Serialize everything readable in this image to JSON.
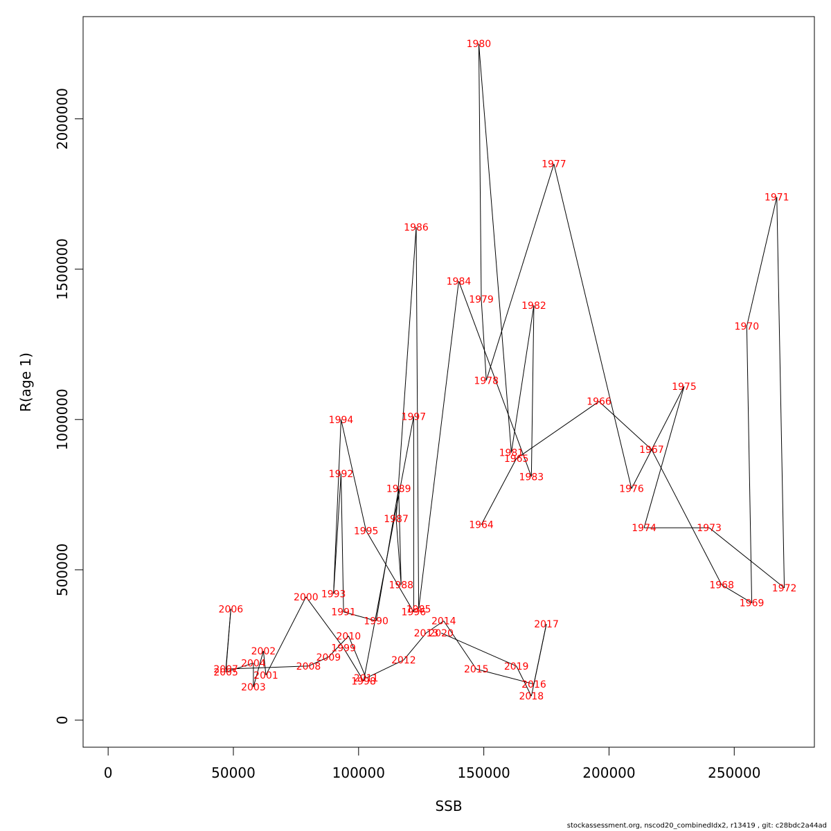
{
  "chart_data": {
    "type": "line",
    "xlabel": "SSB",
    "ylabel": "R(age 1)",
    "xlim": [
      -10000,
      282000
    ],
    "ylim": [
      -90000,
      2340000
    ],
    "x_ticks": [
      0,
      50000,
      100000,
      150000,
      200000,
      250000
    ],
    "x_tick_labels": [
      "0",
      "50000",
      "100000",
      "150000",
      "200000",
      "250000"
    ],
    "y_ticks": [
      0,
      500000,
      1000000,
      1500000,
      2000000
    ],
    "y_tick_labels": [
      "0",
      "500000",
      "1000000",
      "1500000",
      "2000000"
    ],
    "line_color": "#000000",
    "label_color": "#ff0000",
    "grid": false,
    "points": [
      {
        "year": "1964",
        "x": 149000,
        "y": 650000
      },
      {
        "year": "1965",
        "x": 163000,
        "y": 870000
      },
      {
        "year": "1966",
        "x": 196000,
        "y": 1060000
      },
      {
        "year": "1967",
        "x": 217000,
        "y": 900000
      },
      {
        "year": "1968",
        "x": 245000,
        "y": 450000
      },
      {
        "year": "1969",
        "x": 257000,
        "y": 390000
      },
      {
        "year": "1970",
        "x": 255000,
        "y": 1310000
      },
      {
        "year": "1971",
        "x": 267000,
        "y": 1740000
      },
      {
        "year": "1972",
        "x": 270000,
        "y": 440000
      },
      {
        "year": "1973",
        "x": 240000,
        "y": 640000
      },
      {
        "year": "1974",
        "x": 214000,
        "y": 640000
      },
      {
        "year": "1975",
        "x": 230000,
        "y": 1110000
      },
      {
        "year": "1976",
        "x": 209000,
        "y": 770000
      },
      {
        "year": "1977",
        "x": 178000,
        "y": 1850000
      },
      {
        "year": "1978",
        "x": 151000,
        "y": 1130000
      },
      {
        "year": "1979",
        "x": 149000,
        "y": 1400000
      },
      {
        "year": "1980",
        "x": 148000,
        "y": 2250000
      },
      {
        "year": "1981",
        "x": 161000,
        "y": 890000
      },
      {
        "year": "1982",
        "x": 170000,
        "y": 1380000
      },
      {
        "year": "1983",
        "x": 169000,
        "y": 810000
      },
      {
        "year": "1984",
        "x": 140000,
        "y": 1460000
      },
      {
        "year": "1985",
        "x": 124000,
        "y": 370000
      },
      {
        "year": "1986",
        "x": 123000,
        "y": 1640000
      },
      {
        "year": "1987",
        "x": 115000,
        "y": 670000
      },
      {
        "year": "1988",
        "x": 117000,
        "y": 450000
      },
      {
        "year": "1989",
        "x": 116000,
        "y": 770000
      },
      {
        "year": "1990",
        "x": 107000,
        "y": 330000
      },
      {
        "year": "1991",
        "x": 94000,
        "y": 360000
      },
      {
        "year": "1992",
        "x": 93000,
        "y": 820000
      },
      {
        "year": "1993",
        "x": 90000,
        "y": 420000
      },
      {
        "year": "1994",
        "x": 93000,
        "y": 1000000
      },
      {
        "year": "1995",
        "x": 103000,
        "y": 630000
      },
      {
        "year": "1996",
        "x": 122000,
        "y": 360000
      },
      {
        "year": "1997",
        "x": 122000,
        "y": 1010000
      },
      {
        "year": "1998",
        "x": 102000,
        "y": 130000
      },
      {
        "year": "1999",
        "x": 94000,
        "y": 240000
      },
      {
        "year": "2000",
        "x": 79000,
        "y": 410000
      },
      {
        "year": "2001",
        "x": 63000,
        "y": 150000
      },
      {
        "year": "2002",
        "x": 62000,
        "y": 230000
      },
      {
        "year": "2003",
        "x": 58000,
        "y": 110000
      },
      {
        "year": "2004",
        "x": 58000,
        "y": 190000
      },
      {
        "year": "2005",
        "x": 47000,
        "y": 160000
      },
      {
        "year": "2006",
        "x": 49000,
        "y": 370000
      },
      {
        "year": "2007",
        "x": 47000,
        "y": 170000
      },
      {
        "year": "2008",
        "x": 80000,
        "y": 180000
      },
      {
        "year": "2009",
        "x": 88000,
        "y": 210000
      },
      {
        "year": "2010",
        "x": 96000,
        "y": 280000
      },
      {
        "year": "2011",
        "x": 103000,
        "y": 140000
      },
      {
        "year": "2012",
        "x": 118000,
        "y": 200000
      },
      {
        "year": "2013",
        "x": 127000,
        "y": 290000
      },
      {
        "year": "2014",
        "x": 134000,
        "y": 330000
      },
      {
        "year": "2015",
        "x": 147000,
        "y": 170000
      },
      {
        "year": "2016",
        "x": 170000,
        "y": 120000
      },
      {
        "year": "2017",
        "x": 175000,
        "y": 320000
      },
      {
        "year": "2018",
        "x": 169000,
        "y": 80000
      },
      {
        "year": "2019",
        "x": 163000,
        "y": 180000
      },
      {
        "year": "2020",
        "x": 133000,
        "y": 290000
      }
    ]
  },
  "footer": {
    "text": "stockassessment.org, nscod20_combinedIdx2, r13419 , git: c28bdc2a44ad"
  }
}
